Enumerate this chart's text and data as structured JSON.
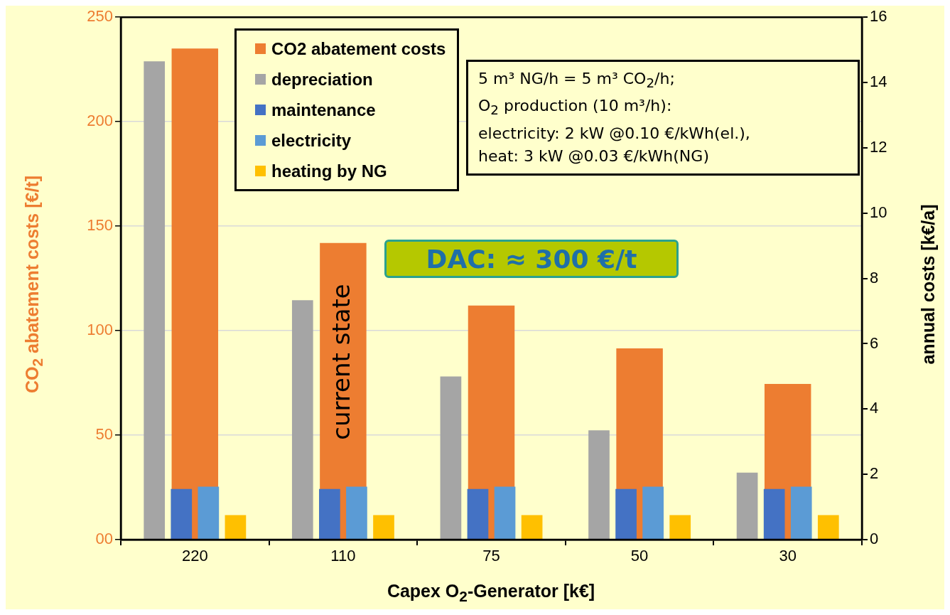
{
  "chart_data": {
    "type": "bar",
    "xlabel": "Capex O$_{2}$-Generator [k€]",
    "ylabel": "CO$_{2}$ abatement costs [€/t]",
    "y2label": "annual costs [k€/a]",
    "categories": [
      "220",
      "110",
      "75",
      "50",
      "30"
    ],
    "series": [
      {
        "name": "CO2 abatement costs",
        "color": "#ed7d31",
        "values": [
          235,
          142,
          112,
          91.5,
          74.5
        ]
      },
      {
        "name": "depreciation",
        "color": "#a5a5a5",
        "values": [
          14.65,
          7.33,
          5.0,
          3.35,
          2.05
        ],
        "axis": "y2"
      },
      {
        "name": "maintenance",
        "color": "#4472c4",
        "values": [
          1.55,
          1.55,
          1.55,
          1.55,
          1.55
        ],
        "axis": "y2"
      },
      {
        "name": "electricity",
        "color": "#5b9bd5",
        "values": [
          1.62,
          1.62,
          1.62,
          1.62,
          1.62
        ],
        "axis": "y2"
      },
      {
        "name": "heating by NG",
        "color": "#ffc000",
        "values": [
          0.75,
          0.75,
          0.75,
          0.75,
          0.75
        ],
        "axis": "y2"
      }
    ],
    "ylim": [
      0,
      250
    ],
    "yticks": [
      {
        "value": 0,
        "label": "00"
      },
      50,
      100,
      150,
      200,
      250
    ],
    "y2lim": [
      0,
      16
    ],
    "y2ticks": [
      0,
      2,
      4,
      6,
      8,
      10,
      12,
      14,
      16
    ],
    "grid": "y",
    "legend": "top",
    "annotations": [
      "5 m³ NG/h = 5 m³ CO$_{2}$/h;\nO$_{2}$ production (10 m³/h):\nelectricity: 2 kW @0.10 €/kWh(el.),\nheat: 3 kW @0.03 €/kWh(NG)",
      "DAC: ≈ 300 €/t",
      "current state"
    ]
  }
}
